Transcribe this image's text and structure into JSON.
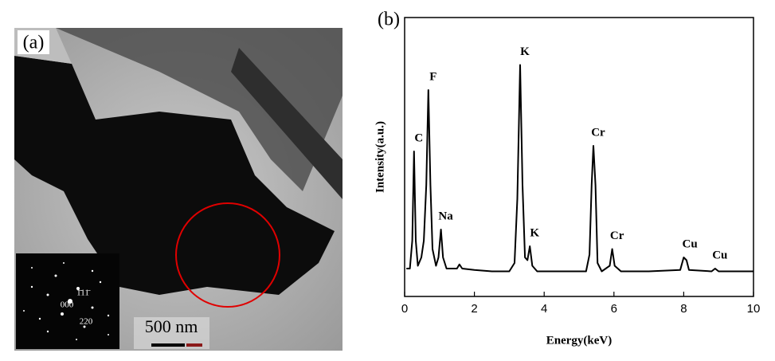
{
  "panel_a": {
    "label": "(a)",
    "scale_bar": "500 nm",
    "inset_labels": [
      "1̄11̄",
      "000",
      "220"
    ]
  },
  "chart_data": {
    "type": "line",
    "panel_label": "(b)",
    "x_label": "Energy(keV)",
    "y_label": "Intensity(a.u.)",
    "xlim": [
      0,
      10
    ],
    "xticks": [
      0,
      2,
      4,
      6,
      8,
      10
    ],
    "ylim": [
      0,
      100
    ],
    "x": [
      0.05,
      0.15,
      0.22,
      0.27,
      0.32,
      0.38,
      0.48,
      0.55,
      0.62,
      0.68,
      0.74,
      0.8,
      0.9,
      0.97,
      1.04,
      1.1,
      1.2,
      1.5,
      1.57,
      1.65,
      2.0,
      2.5,
      3.0,
      3.15,
      3.23,
      3.31,
      3.38,
      3.45,
      3.52,
      3.59,
      3.66,
      3.8,
      4.5,
      5.2,
      5.3,
      5.36,
      5.41,
      5.47,
      5.53,
      5.65,
      5.88,
      5.95,
      6.02,
      6.2,
      7.0,
      7.9,
      8.0,
      8.08,
      8.15,
      8.8,
      8.9,
      9.0,
      10
    ],
    "series": [
      {
        "color": "#000000",
        "values": [
          10,
          10,
          20,
          52,
          20,
          11,
          14,
          20,
          40,
          74,
          40,
          17,
          11,
          14,
          24,
          14,
          10,
          10,
          11.5,
          10,
          9.5,
          9,
          9,
          12,
          35,
          83,
          40,
          14,
          13,
          18,
          11,
          9,
          9,
          9,
          15,
          40,
          54,
          40,
          12,
          9,
          11,
          17,
          11,
          9,
          9,
          9.5,
          14,
          13,
          9.5,
          9,
          10,
          9,
          9
        ]
      }
    ],
    "peaks": [
      {
        "label": "C",
        "x": 0.27,
        "y": 52
      },
      {
        "label": "F",
        "x": 0.68,
        "y": 74
      },
      {
        "label": "Na",
        "x": 1.04,
        "y": 24
      },
      {
        "label": "K",
        "x": 3.31,
        "y": 83
      },
      {
        "label": "K",
        "x": 3.59,
        "y": 18
      },
      {
        "label": "Cr",
        "x": 5.41,
        "y": 54
      },
      {
        "label": "Cr",
        "x": 5.95,
        "y": 17
      },
      {
        "label": "Cu",
        "x": 8.04,
        "y": 14
      },
      {
        "label": "Cu",
        "x": 8.9,
        "y": 10
      }
    ]
  }
}
